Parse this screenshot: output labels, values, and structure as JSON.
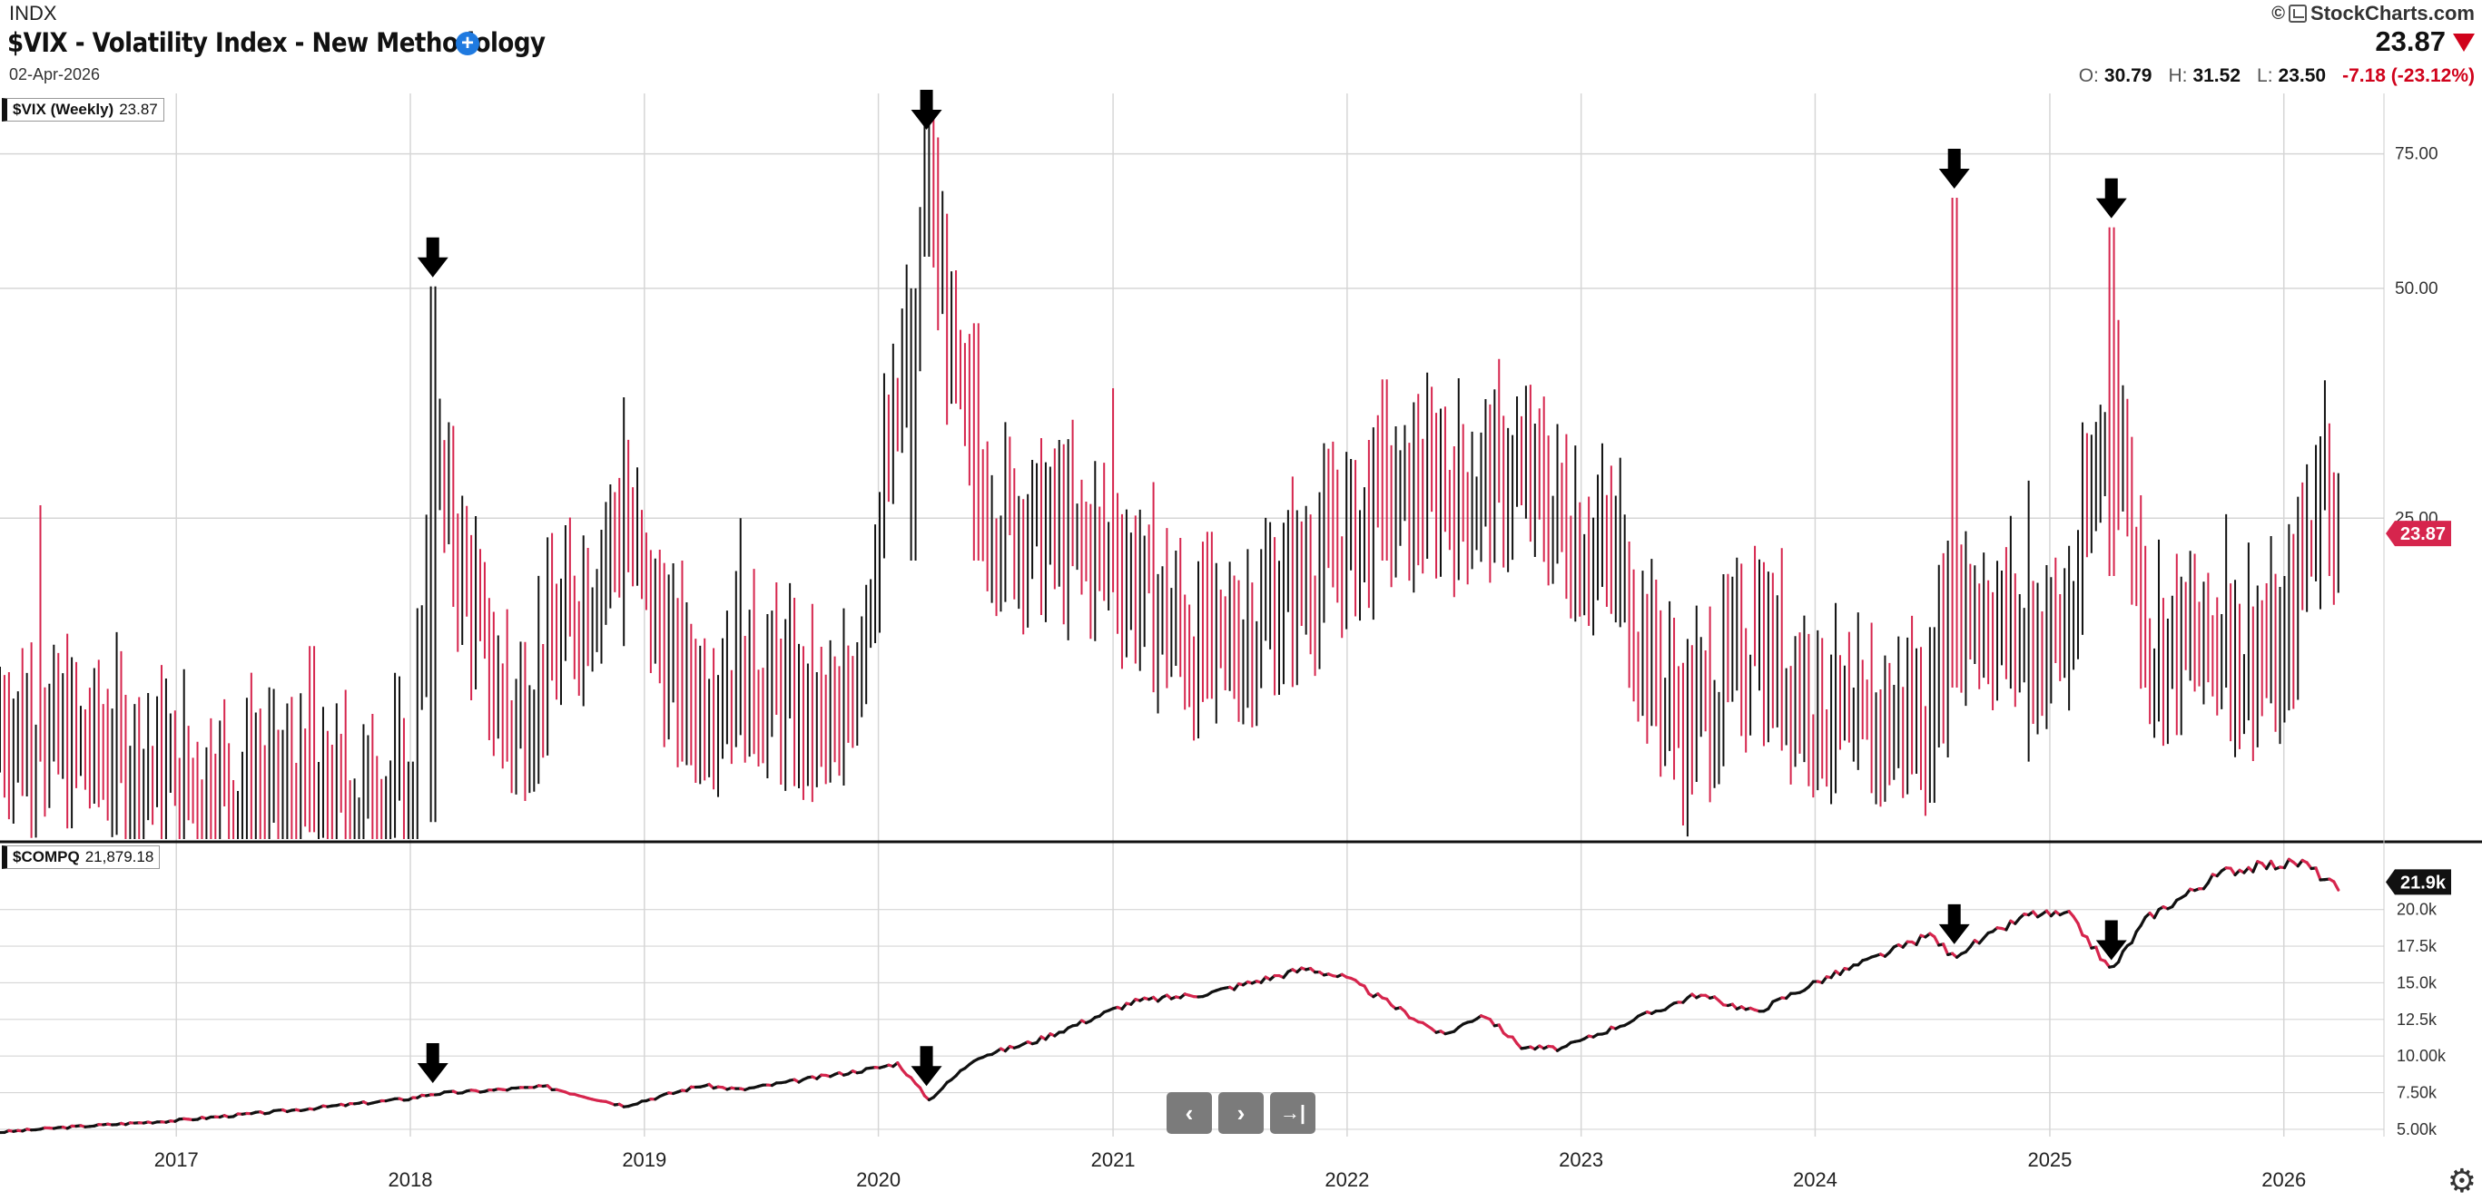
{
  "header": {
    "exchange": "INDX",
    "title": "$VIX - Volatility Index - New Methodology",
    "date": "02-Apr-2026",
    "brand": "StockCharts.com",
    "copyright": "©",
    "last": "23.87",
    "ohlc": [
      {
        "key": "O:",
        "value": "30.79"
      },
      {
        "key": "H:",
        "value": "31.52"
      },
      {
        "key": "L:",
        "value": "23.50"
      }
    ],
    "change": "-7.18 (-23.12%)"
  },
  "colors": {
    "up": "#111111",
    "down": "#d6254d",
    "badge": "#d6254d",
    "grid": "#d6d6d6"
  },
  "chart_data": [
    {
      "type": "bar",
      "panel": "top",
      "label": "$VIX (Weekly)",
      "label_value": "23.87",
      "y_scale": "log",
      "ylim": [
        9.5,
        90
      ],
      "y_ticks": [
        {
          "v": 75,
          "t": "75.00"
        },
        {
          "v": 50,
          "t": "50.00"
        },
        {
          "v": 25,
          "t": "25.00"
        }
      ],
      "last_badge": "23.87",
      "last_value": 23.87,
      "series": [
        {
          "x": "2016-06",
          "open": 15,
          "high": 26,
          "low": 12,
          "close": 13
        },
        {
          "x": "2017-01",
          "open": 12,
          "high": 14,
          "low": 10.5,
          "close": 11.5
        },
        {
          "x": "2017-08",
          "open": 11,
          "high": 17,
          "low": 9.7,
          "close": 10.5
        },
        {
          "x": "2018-01",
          "open": 11,
          "high": 12,
          "low": 9.3,
          "close": 11
        },
        {
          "x": "2018-02-05",
          "open": 17,
          "high": 50.3,
          "low": 10,
          "close": 29
        },
        {
          "x": "2018-06",
          "open": 16,
          "high": 19,
          "low": 12,
          "close": 13
        },
        {
          "x": "2018-12",
          "open": 20,
          "high": 36,
          "low": 17,
          "close": 25
        },
        {
          "x": "2019-03",
          "open": 16,
          "high": 22,
          "low": 12,
          "close": 14
        },
        {
          "x": "2019-06",
          "open": 15,
          "high": 25,
          "low": 13,
          "close": 16
        },
        {
          "x": "2019-11",
          "open": 13,
          "high": 16,
          "low": 11.5,
          "close": 12.5
        },
        {
          "x": "2020-02-24",
          "open": 20,
          "high": 50,
          "low": 22,
          "close": 45
        },
        {
          "x": "2020-03-16",
          "open": 60,
          "high": 85.5,
          "low": 55,
          "close": 66
        },
        {
          "x": "2020-06",
          "open": 30,
          "high": 45,
          "low": 22,
          "close": 26
        },
        {
          "x": "2021-01",
          "open": 24,
          "high": 37,
          "low": 20,
          "close": 22
        },
        {
          "x": "2021-06",
          "open": 17,
          "high": 24,
          "low": 14.5,
          "close": 16
        },
        {
          "x": "2022-03",
          "open": 28,
          "high": 38,
          "low": 22,
          "close": 26
        },
        {
          "x": "2022-06",
          "open": 30,
          "high": 35,
          "low": 24,
          "close": 27
        },
        {
          "x": "2022-10",
          "open": 31,
          "high": 34,
          "low": 26,
          "close": 28
        },
        {
          "x": "2023-03",
          "open": 20,
          "high": 30,
          "low": 18,
          "close": 21
        },
        {
          "x": "2023-06",
          "open": 14,
          "high": 16,
          "low": 12.5,
          "close": 13
        },
        {
          "x": "2023-10",
          "open": 18,
          "high": 23,
          "low": 16,
          "close": 17
        },
        {
          "x": "2024-03",
          "open": 13,
          "high": 15,
          "low": 12,
          "close": 13
        },
        {
          "x": "2024-07",
          "open": 13,
          "high": 18,
          "low": 10.6,
          "close": 14
        },
        {
          "x": "2024-08-05",
          "open": 23,
          "high": 65.7,
          "low": 15,
          "close": 20
        },
        {
          "x": "2024-12",
          "open": 16,
          "high": 28,
          "low": 12,
          "close": 17
        },
        {
          "x": "2025-02",
          "open": 16,
          "high": 23,
          "low": 14,
          "close": 18
        },
        {
          "x": "2025-04-07",
          "open": 45,
          "high": 60.1,
          "low": 21,
          "close": 38
        },
        {
          "x": "2025-06",
          "open": 20,
          "high": 23,
          "low": 15,
          "close": 17
        },
        {
          "x": "2025-10",
          "open": 16,
          "high": 25.3,
          "low": 15,
          "close": 17
        },
        {
          "x": "2026-01",
          "open": 15,
          "high": 21,
          "low": 13.5,
          "close": 16
        },
        {
          "x": "2026-03",
          "open": 24,
          "high": 32,
          "low": 19,
          "close": 30
        },
        {
          "x": "2026-04-02",
          "open": 30.79,
          "high": 31.52,
          "low": 23.5,
          "close": 23.87
        }
      ],
      "annotations": [
        {
          "type": "arrow",
          "x": "2018-02-05"
        },
        {
          "type": "arrow",
          "x": "2020-03-16"
        },
        {
          "type": "arrow",
          "x": "2024-08-05"
        },
        {
          "type": "arrow",
          "x": "2025-04-07"
        }
      ]
    },
    {
      "type": "line",
      "panel": "bottom",
      "label": "$COMPQ",
      "label_value": "21,879.18",
      "ylim": [
        4500,
        24500
      ],
      "y_ticks": [
        {
          "v": 5000,
          "t": "5.00k"
        },
        {
          "v": 7500,
          "t": "7.50k"
        },
        {
          "v": 10000,
          "t": "10.00k"
        },
        {
          "v": 12500,
          "t": "12.5k"
        },
        {
          "v": 15000,
          "t": "15.0k"
        },
        {
          "v": 17500,
          "t": "17.5k"
        },
        {
          "v": 20000,
          "t": "20.0k"
        }
      ],
      "last_badge": "21.9k",
      "last_value": 21879,
      "x": [
        "2016-04",
        "2016-07",
        "2017-01",
        "2017-07",
        "2018-01",
        "2018-02",
        "2018-08",
        "2018-12",
        "2019-04",
        "2019-06",
        "2020-01",
        "2020-02",
        "2020-03-20",
        "2020-06",
        "2020-09",
        "2021-02",
        "2021-06",
        "2021-11",
        "2022-01",
        "2022-06",
        "2022-08",
        "2022-10",
        "2022-12",
        "2023-07",
        "2023-10",
        "2024-01",
        "2024-07",
        "2024-08",
        "2024-12",
        "2025-02",
        "2025-04-07",
        "2025-06",
        "2025-10",
        "2025-12",
        "2026-02",
        "2026-03-27",
        "2026-04-02"
      ],
      "values": [
        4800,
        5100,
        5600,
        6300,
        7100,
        7400,
        7900,
        6600,
        8000,
        7700,
        9200,
        9500,
        7000,
        9900,
        11000,
        13700,
        14300,
        16000,
        15300,
        11400,
        12900,
        10600,
        10500,
        14200,
        13000,
        15000,
        18300,
        16800,
        19700,
        19600,
        15800,
        19400,
        22600,
        23000,
        23200,
        21400,
        21879
      ],
      "annotations": [
        {
          "type": "arrow",
          "x": "2018-02-05"
        },
        {
          "type": "arrow",
          "x": "2020-03-16"
        },
        {
          "type": "arrow",
          "x": "2024-08-05"
        },
        {
          "type": "arrow",
          "x": "2025-04-07"
        }
      ]
    }
  ],
  "x_axis": {
    "start": "2016-04-01",
    "end": "2026-04-02",
    "year_labels": [
      {
        "label": "2017",
        "date": "2017-01-01"
      },
      {
        "label": "2018",
        "date": "2018-01-01"
      },
      {
        "label": "2019",
        "date": "2019-01-01"
      },
      {
        "label": "2020",
        "date": "2020-01-01"
      },
      {
        "label": "2021",
        "date": "2021-01-01"
      },
      {
        "label": "2022",
        "date": "2022-01-01"
      },
      {
        "label": "2023",
        "date": "2023-01-01"
      },
      {
        "label": "2024",
        "date": "2024-01-01"
      },
      {
        "label": "2025",
        "date": "2025-01-01"
      },
      {
        "label": "2026",
        "date": "2026-01-01"
      }
    ]
  },
  "nav": {
    "prev": "‹",
    "next": "›",
    "end": "→|"
  },
  "settings_icon": "⚙"
}
